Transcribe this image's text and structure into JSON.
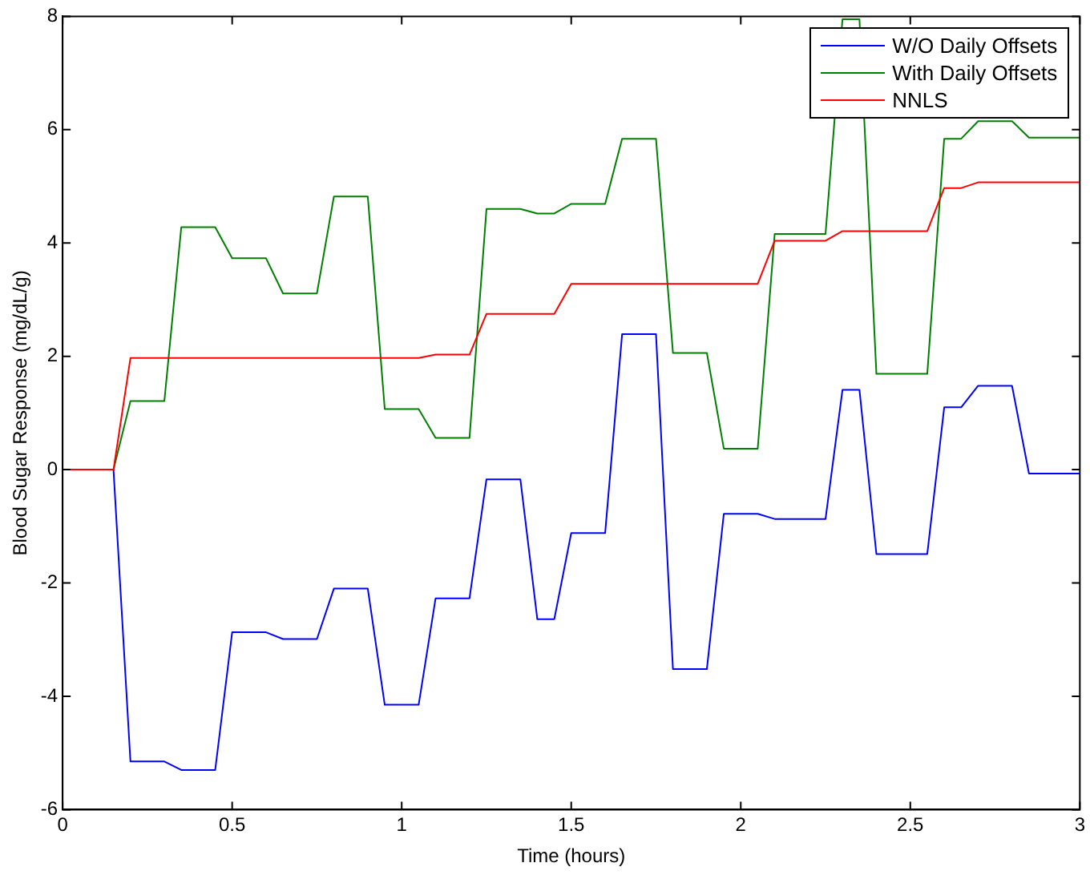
{
  "chart_data": {
    "type": "line",
    "xlabel": "Time (hours)",
    "ylabel": "Blood Sugar Response (mg/dL/g)",
    "x": [
      0,
      0.05,
      0.1,
      0.15,
      0.2,
      0.25,
      0.3,
      0.35,
      0.4,
      0.45,
      0.5,
      0.55,
      0.6,
      0.65,
      0.7,
      0.75,
      0.8,
      0.85,
      0.9,
      0.95,
      1,
      1.05,
      1.1,
      1.15,
      1.2,
      1.25,
      1.3,
      1.35,
      1.4,
      1.45,
      1.5,
      1.55,
      1.6,
      1.65,
      1.7,
      1.75,
      1.8,
      1.85,
      1.9,
      1.95,
      2,
      2.05,
      2.1,
      2.15,
      2.2,
      2.25,
      2.3,
      2.35,
      2.4,
      2.45,
      2.5,
      2.55,
      2.6,
      2.65,
      2.7,
      2.75,
      2.8,
      2.85,
      2.9,
      2.95,
      3
    ],
    "series": [
      {
        "name": "W/O Daily Offsets",
        "color": "#0000ff",
        "values": [
          null,
          null,
          null,
          0,
          -5.15,
          -5.15,
          -5.15,
          -5.3,
          -5.3,
          -5.3,
          -2.87,
          -2.87,
          -2.87,
          -2.99,
          -2.99,
          -2.99,
          -2.1,
          -2.1,
          -2.1,
          -4.15,
          -4.15,
          -4.15,
          -2.27,
          -2.27,
          -2.27,
          -0.17,
          -0.17,
          -0.17,
          -2.64,
          -2.64,
          -1.12,
          -1.12,
          -1.12,
          2.39,
          2.39,
          2.39,
          -3.52,
          -3.52,
          -3.52,
          -0.78,
          -0.78,
          -0.78,
          -0.87,
          -0.87,
          -0.87,
          -0.87,
          1.41,
          1.41,
          -1.49,
          -1.49,
          -1.49,
          -1.49,
          1.1,
          1.1,
          1.48,
          1.48,
          1.48,
          -0.07,
          -0.07,
          -0.07,
          -0.07
        ]
      },
      {
        "name": "With Daily Offsets",
        "color": "#008000",
        "values": [
          null,
          null,
          null,
          0,
          1.21,
          1.21,
          1.21,
          4.28,
          4.28,
          4.28,
          3.73,
          3.73,
          3.73,
          3.11,
          3.11,
          3.11,
          4.82,
          4.82,
          4.82,
          1.07,
          1.07,
          1.07,
          0.56,
          0.56,
          0.56,
          4.6,
          4.6,
          4.6,
          4.52,
          4.52,
          4.69,
          4.69,
          4.69,
          5.84,
          5.84,
          5.84,
          2.06,
          2.06,
          2.06,
          0.37,
          0.37,
          0.37,
          4.16,
          4.16,
          4.16,
          4.16,
          7.95,
          7.95,
          1.69,
          1.69,
          1.69,
          1.69,
          5.84,
          5.84,
          6.15,
          6.15,
          6.15,
          5.86,
          5.86,
          5.86,
          5.86
        ]
      },
      {
        "name": "NNLS",
        "color": "#ff0000",
        "values": [
          0,
          0,
          0,
          0,
          1.97,
          1.97,
          1.97,
          1.97,
          1.97,
          1.97,
          1.97,
          1.97,
          1.97,
          1.97,
          1.97,
          1.97,
          1.97,
          1.97,
          1.97,
          1.97,
          1.97,
          1.97,
          2.03,
          2.03,
          2.03,
          2.75,
          2.75,
          2.75,
          2.75,
          2.75,
          3.28,
          3.28,
          3.28,
          3.28,
          3.28,
          3.28,
          3.28,
          3.28,
          3.28,
          3.28,
          3.28,
          3.28,
          4.04,
          4.04,
          4.04,
          4.04,
          4.21,
          4.21,
          4.21,
          4.21,
          4.21,
          4.21,
          4.97,
          4.97,
          5.07,
          5.07,
          5.07,
          5.07,
          5.07,
          5.07,
          5.07
        ]
      }
    ],
    "xlim": [
      0,
      3
    ],
    "xticks": [
      0,
      0.5,
      1,
      1.5,
      2,
      2.5,
      3
    ],
    "ylim": [
      -6,
      8
    ],
    "yticks": [
      -6,
      -4,
      -2,
      0,
      2,
      4,
      6,
      8
    ],
    "grid": false,
    "legend": "top right",
    "marker": "none",
    "line_style": "solid"
  }
}
